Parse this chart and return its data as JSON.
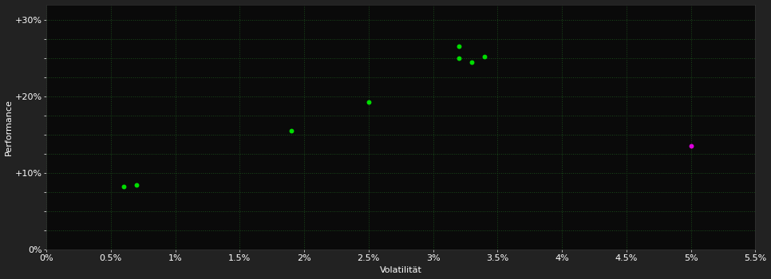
{
  "background_color": "#222222",
  "plot_bg_color": "#0a0a0a",
  "grid_color": "#1a4a1a",
  "grid_linestyle": ":",
  "xlabel": "Volatilität",
  "ylabel": "Performance",
  "text_color": "#ffffff",
  "tick_color": "#ffffff",
  "xlim": [
    0.0,
    0.055
  ],
  "ylim": [
    0.0,
    0.32
  ],
  "xticks": [
    0.0,
    0.005,
    0.01,
    0.015,
    0.02,
    0.025,
    0.03,
    0.035,
    0.04,
    0.045,
    0.05,
    0.055
  ],
  "yticks": [
    0.0,
    0.025,
    0.05,
    0.075,
    0.1,
    0.125,
    0.15,
    0.175,
    0.2,
    0.225,
    0.25,
    0.275,
    0.3
  ],
  "ytick_major": [
    0.0,
    0.1,
    0.2,
    0.3
  ],
  "xtick_labels": [
    "0%",
    "0.5%",
    "1%",
    "1.5%",
    "2%",
    "2.5%",
    "3%",
    "3.5%",
    "4%",
    "4.5%",
    "5%",
    "5.5%"
  ],
  "ytick_labels": [
    "0%",
    "+10%",
    "+20%",
    "+30%"
  ],
  "green_points": [
    [
      0.006,
      0.083
    ],
    [
      0.007,
      0.085
    ],
    [
      0.019,
      0.155
    ],
    [
      0.025,
      0.193
    ],
    [
      0.032,
      0.265
    ],
    [
      0.032,
      0.25
    ],
    [
      0.033,
      0.245
    ],
    [
      0.034,
      0.252
    ]
  ],
  "magenta_points": [
    [
      0.05,
      0.135
    ]
  ],
  "green_color": "#00dd00",
  "magenta_color": "#dd00dd",
  "marker_size": 18
}
